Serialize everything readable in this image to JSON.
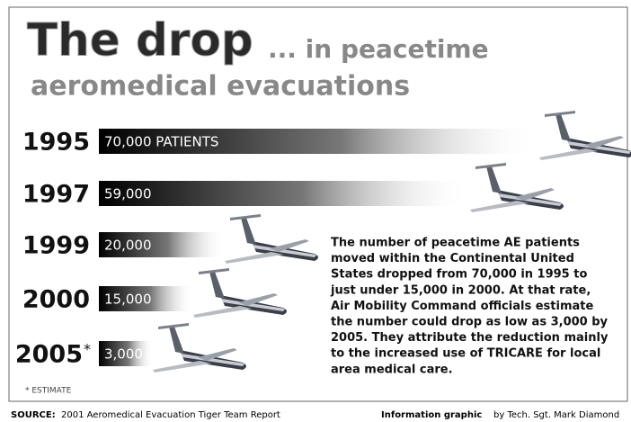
{
  "chart_data": {
    "type": "bar",
    "orientation": "horizontal",
    "title": "The drop",
    "subtitle": "... in peacetime",
    "subtitle2": "aeromedical evacuations",
    "categories": [
      "1995",
      "1997",
      "1999",
      "2000",
      "2005"
    ],
    "category_marks": [
      null,
      null,
      null,
      null,
      "*"
    ],
    "values": [
      70000,
      59000,
      20000,
      15000,
      3000
    ],
    "value_labels": [
      "70,000 PATIENTS",
      "59,000",
      "20,000",
      "15,000",
      "3,000"
    ],
    "color": "#000000",
    "footnote": "* ESTIMATE",
    "annotation": [
      "The number of peacetime AE patients",
      "moved within the Continental United",
      "States dropped from 70,000 in 1995 to",
      "just under 15,000 in 2000.  At that rate,",
      "Air Mobility Command officials estimate",
      "the number could drop as low as 3,000 by",
      "2005.  They attribute the reduction mainly",
      "to the increased use of TRICARE for local",
      "area medical care."
    ],
    "source_label": "SOURCE:",
    "source": "2001 Aeromedical Evacuation Tiger Team Report",
    "credit_label": "Information graphic",
    "credit": "by Tech. Sgt. Mark Diamond"
  }
}
